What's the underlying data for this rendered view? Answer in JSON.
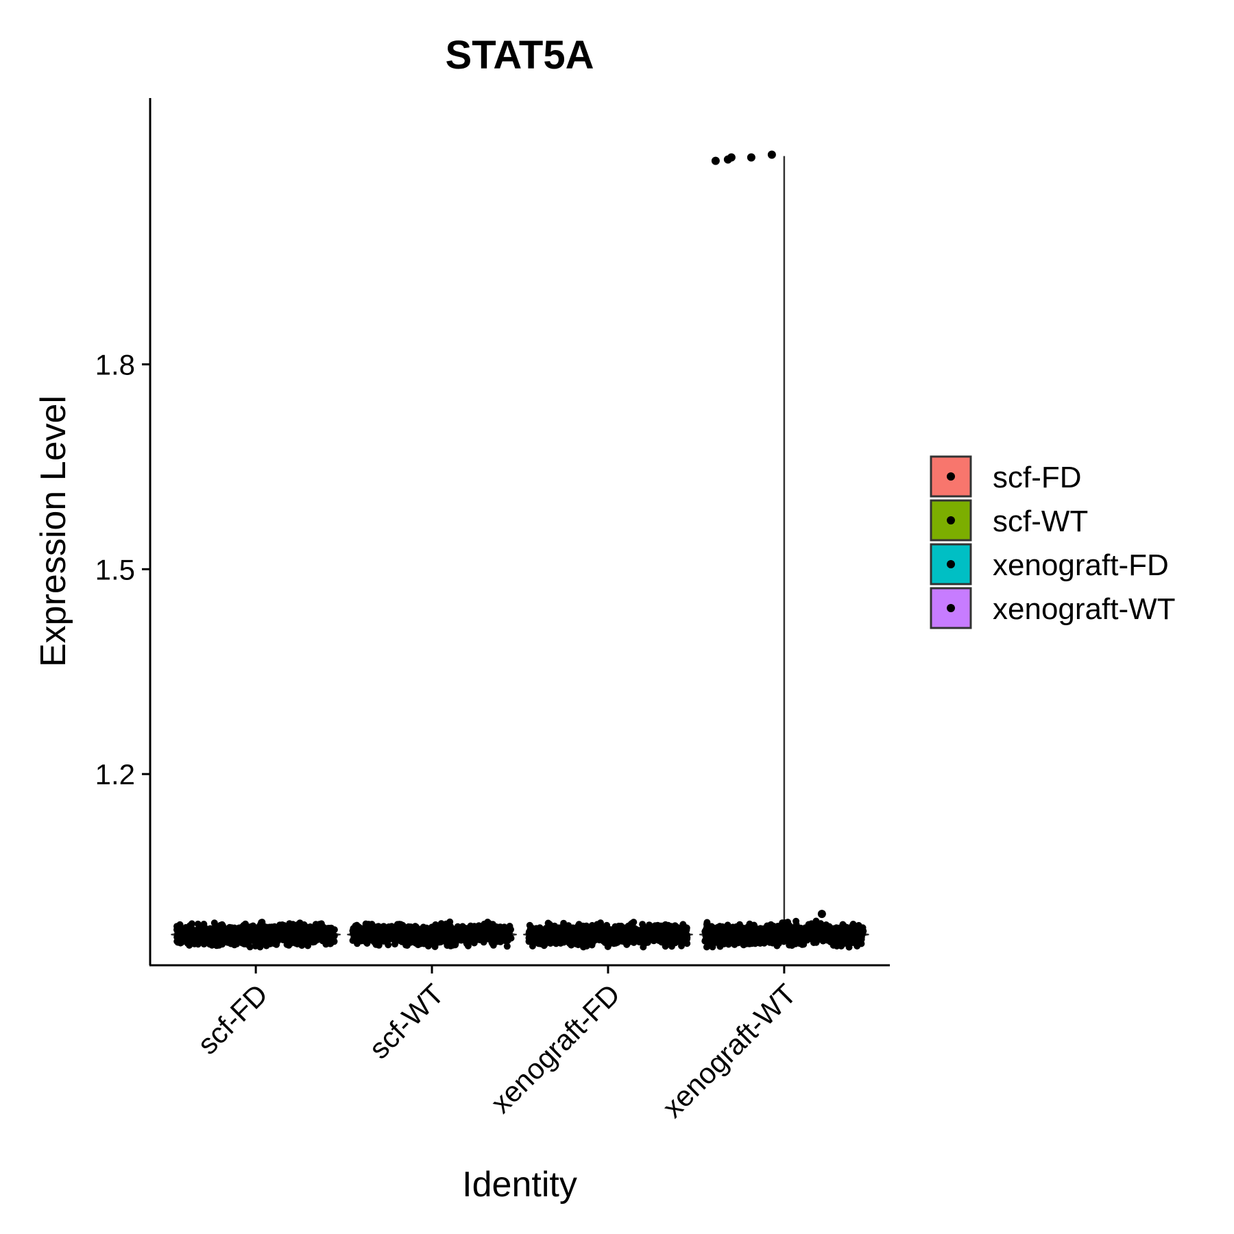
{
  "chart_data": {
    "type": "violin",
    "title": "STAT5A",
    "xlabel": "Identity",
    "ylabel": "Expression Level",
    "categories": [
      "scf-FD",
      "scf-WT",
      "xenograft-FD",
      "xenograft-WT"
    ],
    "yticks": [
      1.2,
      1.5,
      1.8
    ],
    "ylim": [
      0.92,
      2.19
    ],
    "baseline_value": 0.965,
    "series": [
      {
        "name": "scf-FD",
        "color": "#F8766D",
        "max": 0.985,
        "outliers": []
      },
      {
        "name": "scf-WT",
        "color": "#7CAE00",
        "max": 0.985,
        "outliers": []
      },
      {
        "name": "xenograft-FD",
        "color": "#00BFC4",
        "max": 0.985,
        "outliers": []
      },
      {
        "name": "xenograft-WT",
        "color": "#C77CFF",
        "max": 2.105,
        "outliers": [
          2.098,
          2.1,
          2.103,
          2.103,
          2.107
        ]
      }
    ],
    "legend": {
      "position": "right",
      "entries": [
        "scf-FD",
        "scf-WT",
        "xenograft-FD",
        "xenograft-WT"
      ]
    },
    "grid": false
  }
}
